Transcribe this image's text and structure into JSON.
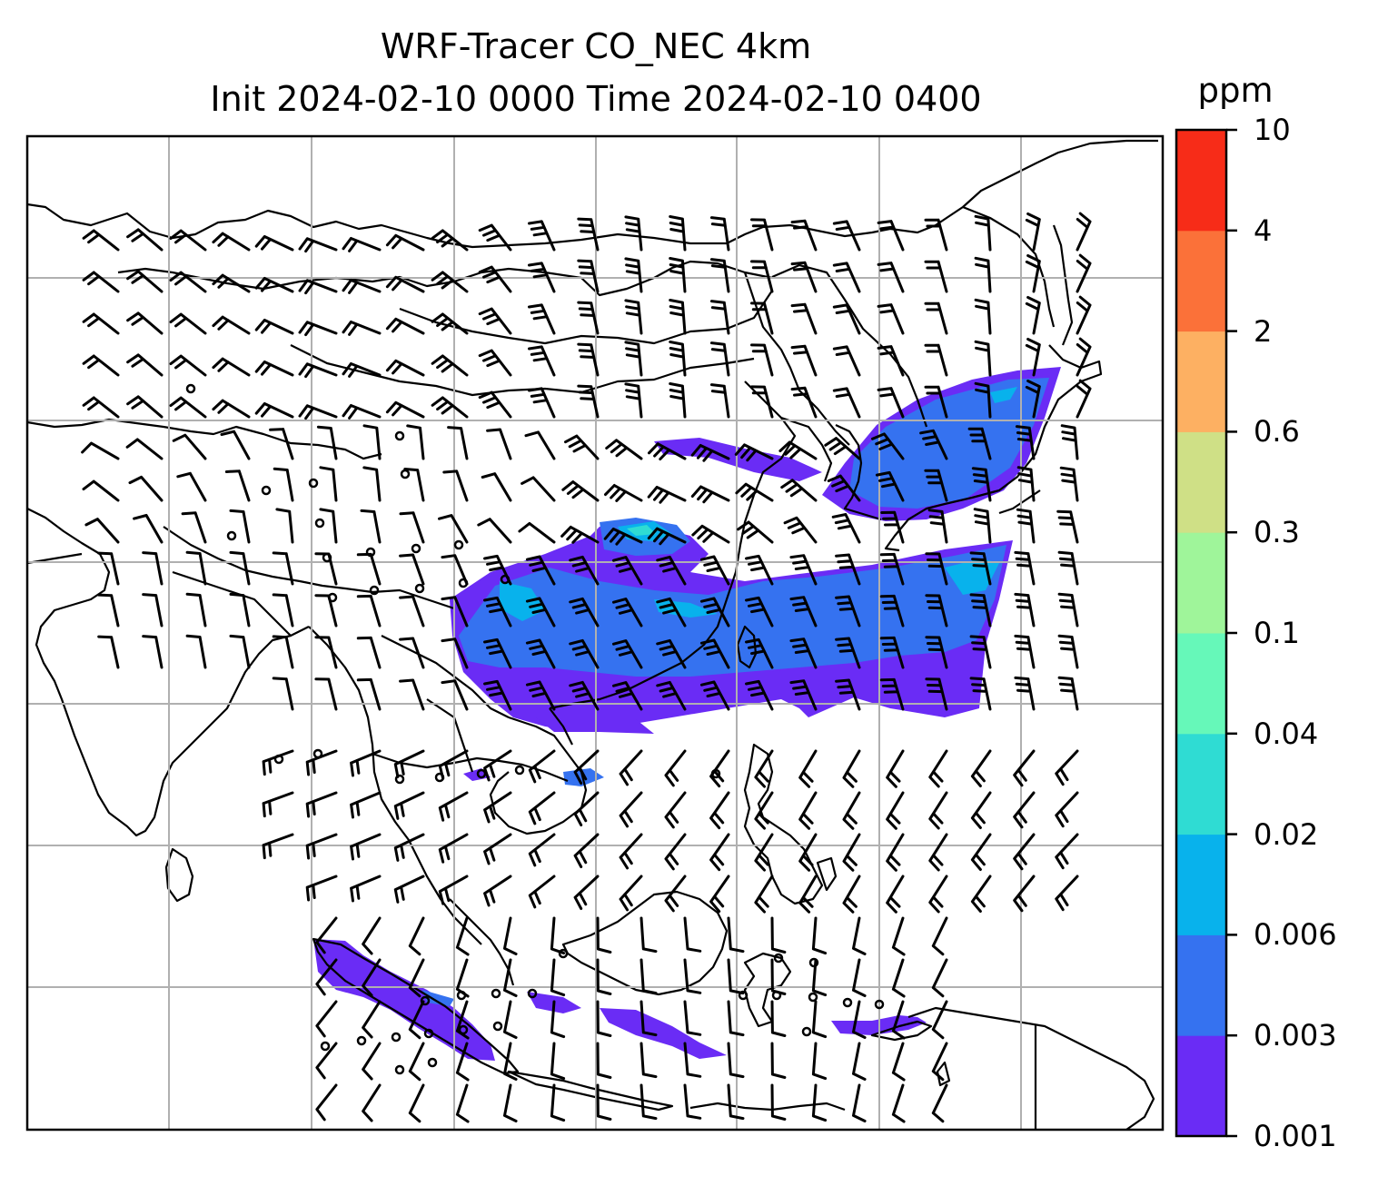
{
  "title": {
    "line1": "WRF-Tracer CO_NEC 4km",
    "line2": "Init 2024-02-10 0000 Time 2024-02-10 0400"
  },
  "colorbar": {
    "unit": "ppm",
    "ticks": [
      "0.001",
      "0.003",
      "0.006",
      "0.02",
      "0.04",
      "0.1",
      "0.3",
      "0.6",
      "2",
      "4",
      "10"
    ],
    "colors": [
      "#6a2cf5",
      "#3572f0",
      "#08b2ec",
      "#2fdcd3",
      "#66f8b9",
      "#9ff59a",
      "#cfe086",
      "#fdb062",
      "#fb7139",
      "#f72c18"
    ]
  },
  "map": {
    "projection": "Mercator, East & Southeast Asia",
    "gridlines": "on",
    "wind_symbol": "barbs",
    "coastline_color": "#000000",
    "gridline_color": "#b0b0b0"
  }
}
